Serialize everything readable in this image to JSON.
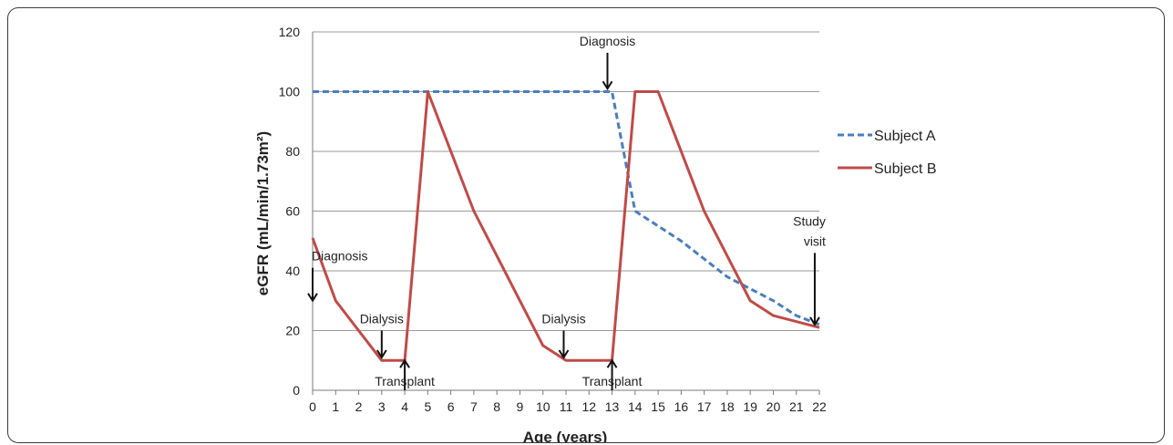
{
  "chart_data": {
    "type": "line",
    "title": "",
    "xlabel": "Age (years)",
    "ylabel": "eGFR (mL/min/1.73m²)",
    "xlim": [
      0,
      22
    ],
    "ylim": [
      0,
      120
    ],
    "x_ticks": [
      "0",
      "1",
      "2",
      "3",
      "4",
      "5",
      "6",
      "7",
      "8",
      "9",
      "10",
      "11",
      "12",
      "13",
      "14",
      "15",
      "16",
      "17",
      "18",
      "19",
      "20",
      "21",
      "22"
    ],
    "y_ticks": [
      "0",
      "20",
      "40",
      "60",
      "80",
      "100",
      "120"
    ],
    "grid": "horizontal",
    "legend_position": "right",
    "series": [
      {
        "name": "Subject A",
        "color": "#4a7ebb",
        "style": "dashed",
        "points": [
          [
            0,
            100
          ],
          [
            13,
            100
          ],
          [
            14,
            60
          ],
          [
            16,
            50
          ],
          [
            18,
            38
          ],
          [
            20,
            30
          ],
          [
            21,
            25
          ],
          [
            22,
            22
          ]
        ]
      },
      {
        "name": "Subject B",
        "color": "#be4b48",
        "style": "solid",
        "points": [
          [
            0,
            51
          ],
          [
            1,
            30
          ],
          [
            3,
            10
          ],
          [
            4,
            10
          ],
          [
            5,
            100
          ],
          [
            7,
            60
          ],
          [
            10,
            15
          ],
          [
            11,
            10
          ],
          [
            13,
            10
          ],
          [
            14,
            100
          ],
          [
            15,
            100
          ],
          [
            17,
            60
          ],
          [
            19,
            30
          ],
          [
            20,
            25
          ],
          [
            22,
            21
          ]
        ]
      }
    ],
    "annotations": [
      {
        "lines": [
          "Diagnosis"
        ],
        "x": 0,
        "arrow": "down",
        "arrow_from": 41,
        "arrow_to": 30
      },
      {
        "lines": [
          "Dialysis"
        ],
        "x": 3,
        "arrow": "down",
        "arrow_from": 20,
        "arrow_to": 11
      },
      {
        "lines": [
          "Transplant"
        ],
        "x": 4,
        "arrow": "up",
        "arrow_from": 0,
        "arrow_to": 10
      },
      {
        "lines": [
          "Dialysis"
        ],
        "x": 10.9,
        "arrow": "down",
        "arrow_from": 20,
        "arrow_to": 11
      },
      {
        "lines": [
          "Transplant"
        ],
        "x": 13,
        "arrow": "up",
        "arrow_from": 0,
        "arrow_to": 10
      },
      {
        "lines": [
          "Diagnosis"
        ],
        "x": 12.8,
        "arrow": "down",
        "arrow_from": 113,
        "arrow_to": 101
      },
      {
        "lines": [
          "Study",
          "visit"
        ],
        "x": 21.8,
        "arrow": "down",
        "arrow_from": 46,
        "arrow_to": 22
      }
    ]
  }
}
